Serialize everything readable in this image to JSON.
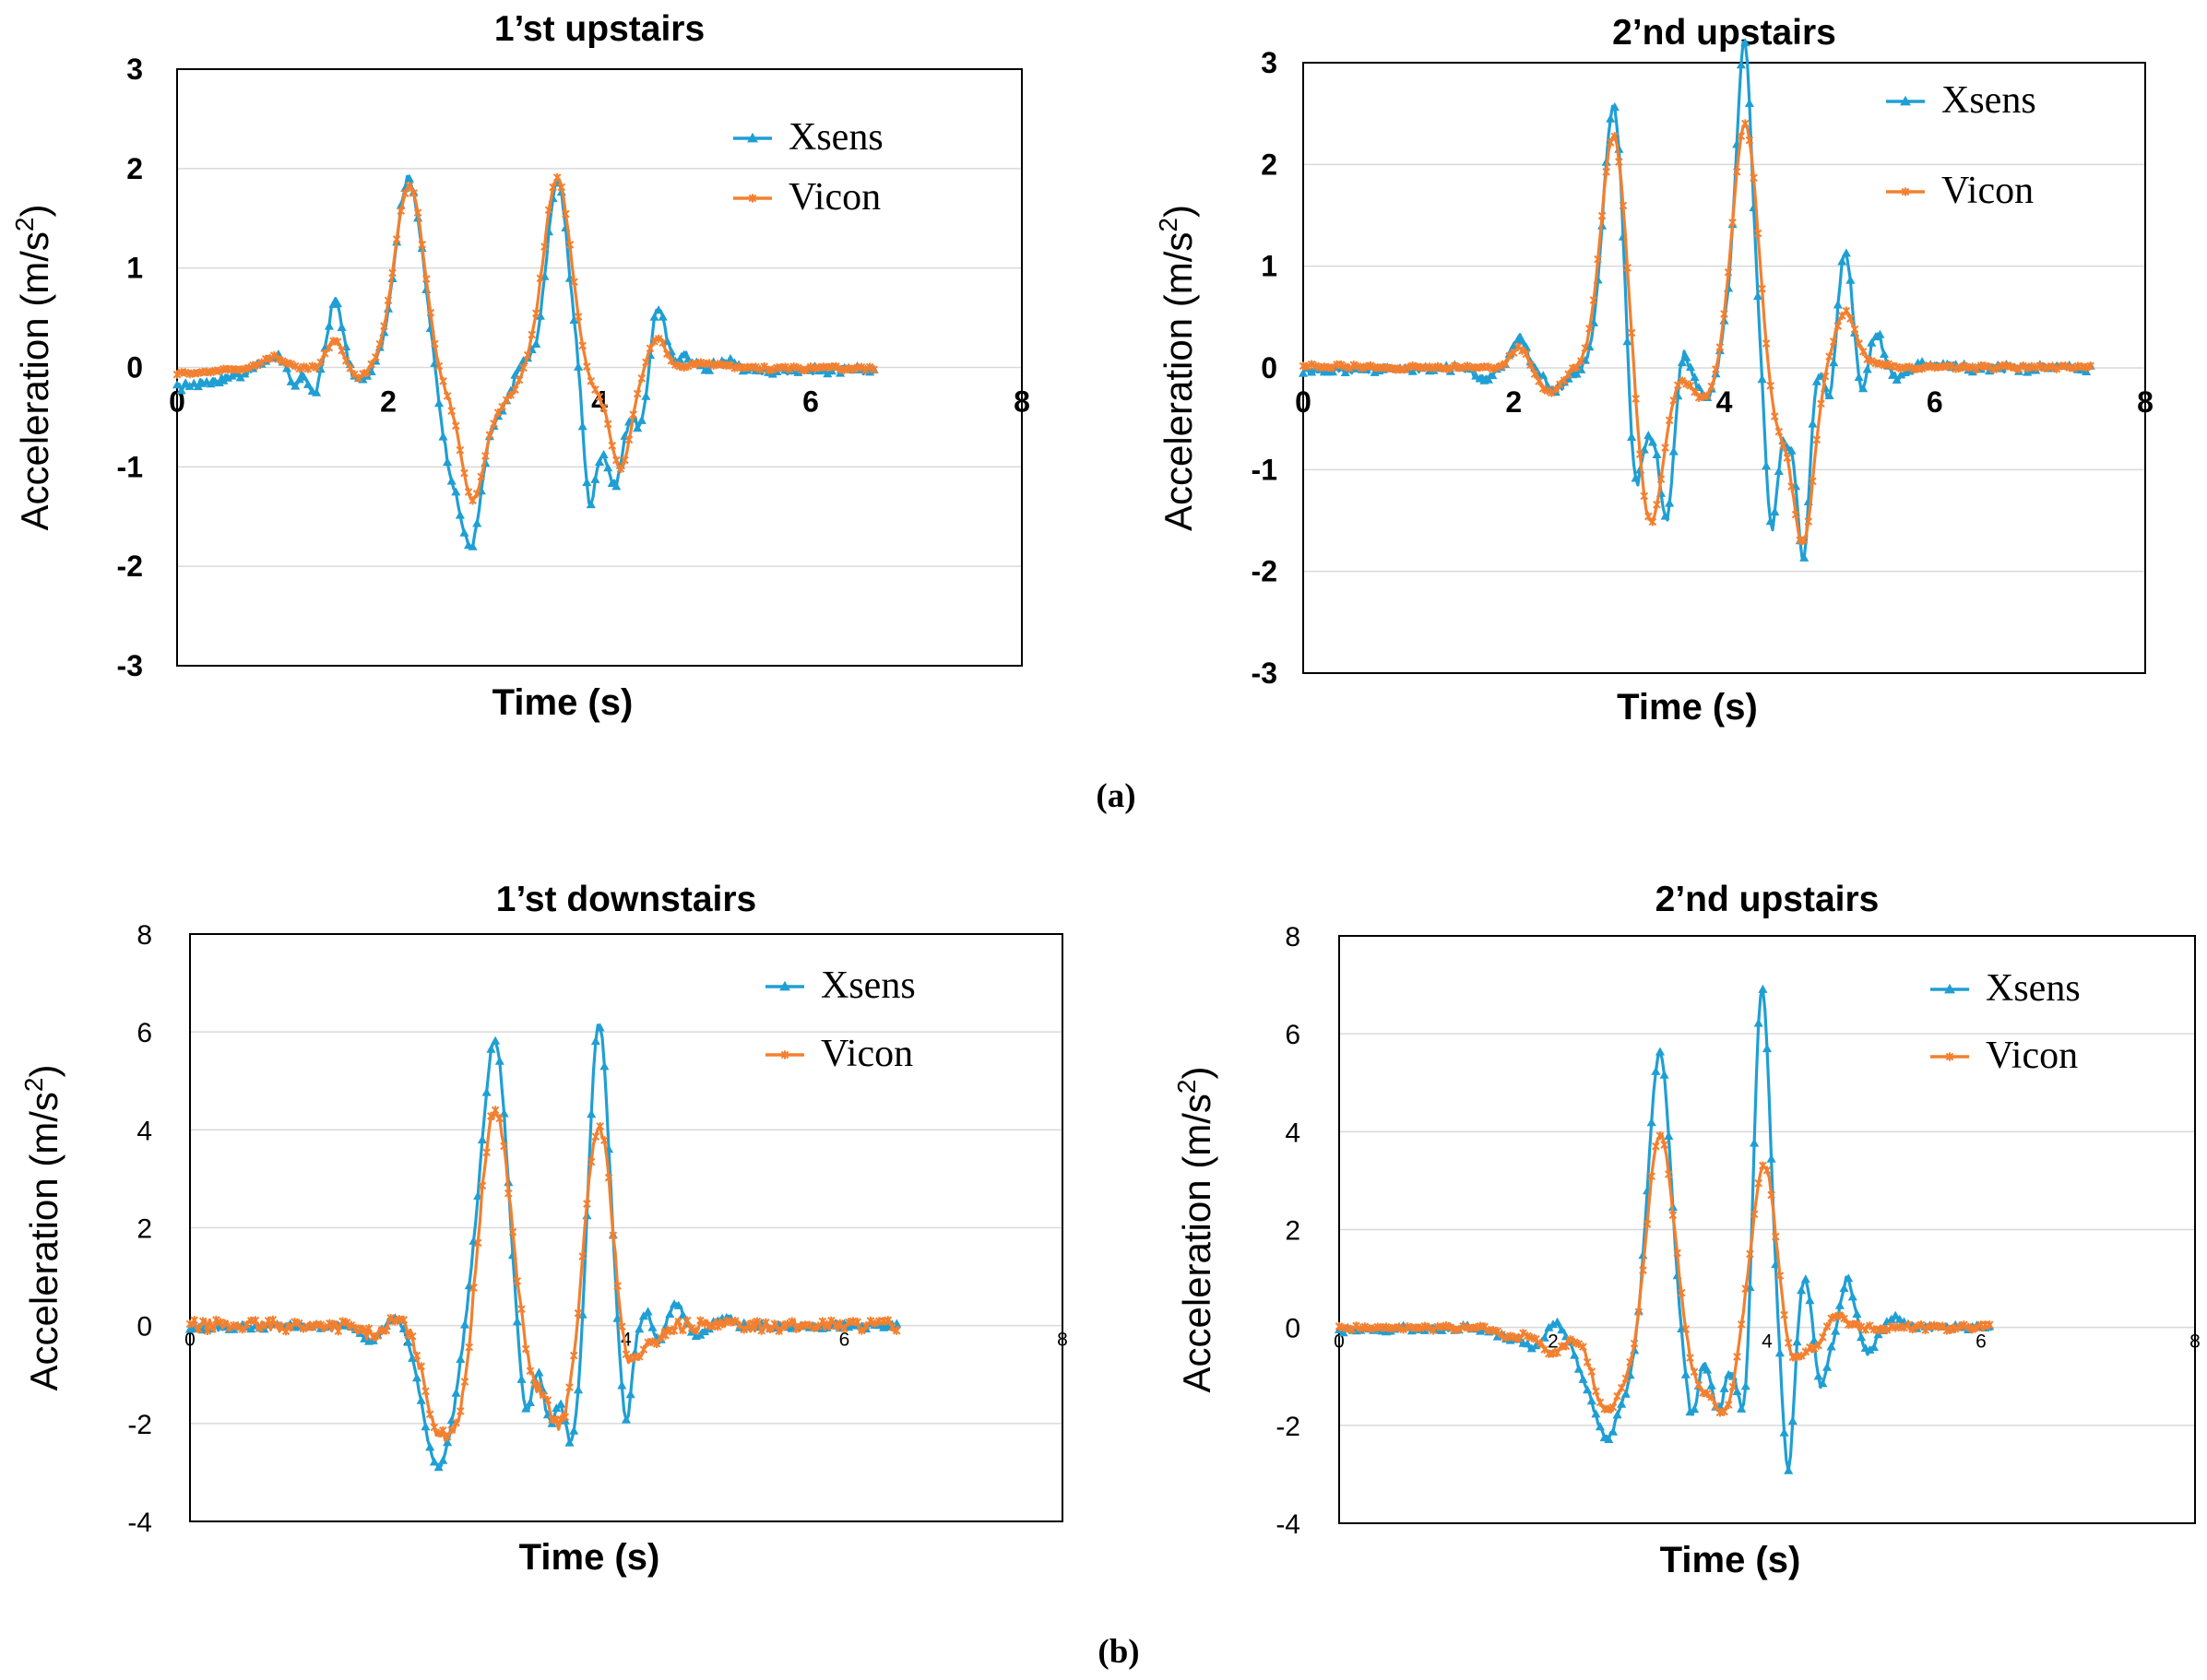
{
  "figure": {
    "sublabel_a": "(a)",
    "sublabel_b": "(b)"
  },
  "colors": {
    "xsens": "#1f9fd4",
    "vicon": "#f28030"
  },
  "chart_data": [
    {
      "type": "line",
      "title": "1’st upstairs",
      "xlabel": "Time (s)",
      "ylabel_main": "Acceleration (m/s",
      "ylabel_sup": "2",
      "ylabel_close": ")",
      "xlim": [
        0,
        8
      ],
      "ylim": [
        -3,
        3
      ],
      "x_ticks": [
        "0",
        "2",
        "4",
        "6",
        "8"
      ],
      "y_ticks": [
        "-3",
        "-2",
        "-1",
        "0",
        "1",
        "2",
        "3"
      ],
      "x_end": 6.6,
      "series": [
        {
          "name": "Xsens",
          "base": -0.18,
          "noise": 0.04,
          "peaks": [
            [
              0.95,
              0.15,
              0.12
            ],
            [
              1.1,
              -0.25,
              0.05
            ],
            [
              1.3,
              -0.25,
              0.05
            ],
            [
              1.5,
              0.7,
              0.07
            ],
            [
              1.7,
              -0.1,
              0.08
            ],
            [
              2.05,
              0.2,
              0.1
            ],
            [
              2.2,
              1.85,
              0.12
            ],
            [
              2.4,
              0.2,
              0.08
            ],
            [
              2.6,
              -0.9,
              0.12
            ],
            [
              2.8,
              -1.5,
              0.1
            ],
            [
              3.05,
              -0.4,
              0.1
            ],
            [
              3.3,
              0.1,
              0.08
            ],
            [
              3.6,
              1.9,
              0.1
            ],
            [
              3.8,
              0.1,
              0.06
            ],
            [
              3.9,
              -1.2,
              0.06
            ],
            [
              4.0,
              -0.4,
              0.07
            ],
            [
              4.15,
              -1.1,
              0.08
            ],
            [
              4.3,
              -0.15,
              0.06
            ],
            [
              4.4,
              -0.55,
              0.06
            ],
            [
              4.55,
              0.65,
              0.07
            ],
            [
              4.8,
              0.15,
              0.08
            ],
            [
              5.2,
              0.1,
              0.1
            ]
          ]
        },
        {
          "name": "Vicon",
          "base": -0.05,
          "noise": 0.02,
          "peaks": [
            [
              0.9,
              0.12,
              0.1
            ],
            [
              1.5,
              0.3,
              0.08
            ],
            [
              1.7,
              -0.1,
              0.1
            ],
            [
              2.2,
              1.85,
              0.14
            ],
            [
              2.5,
              -0.2,
              0.1
            ],
            [
              2.8,
              -1.3,
              0.12
            ],
            [
              3.1,
              -0.3,
              0.12
            ],
            [
              3.6,
              1.9,
              0.13
            ],
            [
              3.95,
              -0.2,
              0.1
            ],
            [
              4.2,
              -1.0,
              0.1
            ],
            [
              4.55,
              0.3,
              0.08
            ],
            [
              5.0,
              0.05,
              0.15
            ]
          ]
        }
      ]
    },
    {
      "type": "line",
      "title": "2’nd upstairs",
      "xlabel": "Time (s)",
      "ylabel_main": "Acceleration (m/s",
      "ylabel_sup": "2",
      "ylabel_close": ")",
      "xlim": [
        0,
        8
      ],
      "ylim": [
        -3,
        3
      ],
      "x_ticks": [
        "0",
        "2",
        "4",
        "6",
        "8"
      ],
      "y_ticks": [
        "-3",
        "-2",
        "-1",
        "0",
        "1",
        "2",
        "3"
      ],
      "x_end": 7.5,
      "series": [
        {
          "name": "Xsens",
          "base": -0.02,
          "noise": 0.04,
          "peaks": [
            [
              1.7,
              -0.1,
              0.08
            ],
            [
              2.05,
              0.3,
              0.07
            ],
            [
              2.4,
              -0.2,
              0.1
            ],
            [
              2.95,
              2.6,
              0.1
            ],
            [
              3.15,
              -1.4,
              0.07
            ],
            [
              3.3,
              -0.4,
              0.05
            ],
            [
              3.45,
              -1.5,
              0.07
            ],
            [
              3.6,
              0.25,
              0.05
            ],
            [
              3.85,
              -0.3,
              0.1
            ],
            [
              4.1,
              0.8,
              0.1
            ],
            [
              4.2,
              2.7,
              0.07
            ],
            [
              4.35,
              0.2,
              0.05
            ],
            [
              4.45,
              -1.6,
              0.06
            ],
            [
              4.6,
              -0.6,
              0.05
            ],
            [
              4.75,
              -1.9,
              0.06
            ],
            [
              4.9,
              0.1,
              0.05
            ],
            [
              5.0,
              -0.4,
              0.05
            ],
            [
              5.15,
              1.15,
              0.07
            ],
            [
              5.3,
              -0.3,
              0.05
            ],
            [
              5.45,
              0.35,
              0.06
            ],
            [
              5.65,
              -0.1,
              0.07
            ],
            [
              6.0,
              0.05,
              0.15
            ]
          ]
        },
        {
          "name": "Vicon",
          "base": 0.02,
          "noise": 0.02,
          "peaks": [
            [
              2.05,
              0.2,
              0.08
            ],
            [
              2.35,
              -0.25,
              0.1
            ],
            [
              2.95,
              2.3,
              0.12
            ],
            [
              3.3,
              -1.55,
              0.12
            ],
            [
              3.8,
              -0.3,
              0.12
            ],
            [
              4.2,
              2.4,
              0.12
            ],
            [
              4.5,
              -0.6,
              0.1
            ],
            [
              4.75,
              -1.7,
              0.1
            ],
            [
              5.15,
              0.55,
              0.1
            ],
            [
              5.45,
              0.05,
              0.12
            ]
          ]
        }
      ]
    },
    {
      "type": "line",
      "title": "1’st downstairs",
      "xlabel": "Time (s)",
      "ylabel_main": "Acceleration (m/s",
      "ylabel_sup": "2",
      "ylabel_close": ")",
      "xlim": [
        0,
        8
      ],
      "ylim": [
        -4,
        8
      ],
      "x_ticks": [
        "0",
        "2",
        "4",
        "6",
        "8"
      ],
      "y_ticks": [
        "-4",
        "-2",
        "0",
        "2",
        "4",
        "6",
        "8"
      ],
      "x_end": 6.5,
      "series": [
        {
          "name": "Xsens",
          "base": -0.05,
          "noise": 0.06,
          "peaks": [
            [
              1.7,
              -0.3,
              0.12
            ],
            [
              1.85,
              0.3,
              0.08
            ],
            [
              2.15,
              -0.8,
              0.1
            ],
            [
              2.3,
              -2.5,
              0.12
            ],
            [
              2.5,
              -0.5,
              0.1
            ],
            [
              2.6,
              1.0,
              0.1
            ],
            [
              2.8,
              5.7,
              0.11
            ],
            [
              2.97,
              -0.3,
              0.06
            ],
            [
              3.08,
              -1.8,
              0.06
            ],
            [
              3.2,
              -0.3,
              0.06
            ],
            [
              3.3,
              -1.8,
              0.06
            ],
            [
              3.4,
              -0.6,
              0.05
            ],
            [
              3.5,
              -2.3,
              0.06
            ],
            [
              3.6,
              -0.8,
              0.05
            ],
            [
              3.75,
              6.2,
              0.09
            ],
            [
              3.92,
              -0.3,
              0.05
            ],
            [
              4.0,
              -2.0,
              0.05
            ],
            [
              4.2,
              0.3,
              0.05
            ],
            [
              4.3,
              -0.4,
              0.05
            ],
            [
              4.45,
              0.5,
              0.06
            ],
            [
              4.65,
              -0.2,
              0.06
            ],
            [
              4.9,
              0.2,
              0.06
            ]
          ]
        },
        {
          "name": "Vicon",
          "base": 0.0,
          "noise": 0.12,
          "peaks": [
            [
              1.7,
              -0.2,
              0.12
            ],
            [
              1.9,
              0.2,
              0.1
            ],
            [
              2.3,
              -2.2,
              0.14
            ],
            [
              2.5,
              -1.0,
              0.08
            ],
            [
              2.8,
              4.4,
              0.13
            ],
            [
              3.15,
              -1.0,
              0.1
            ],
            [
              3.4,
              -2.0,
              0.12
            ],
            [
              3.75,
              4.1,
              0.12
            ],
            [
              4.0,
              -1.0,
              0.08
            ],
            [
              4.2,
              -0.4,
              0.1
            ]
          ]
        }
      ]
    },
    {
      "type": "line",
      "title": "2’nd upstairs",
      "xlabel": "Time (s)",
      "ylabel_main": "Acceleration (m/s",
      "ylabel_sup": "2",
      "ylabel_close": ")",
      "xlim": [
        0,
        8
      ],
      "ylim": [
        -4,
        8
      ],
      "x_ticks": [
        "0",
        "2",
        "4",
        "6",
        "8"
      ],
      "y_ticks": [
        "-4",
        "-2",
        "0",
        "2",
        "4",
        "6",
        "8"
      ],
      "x_end": 6.1,
      "series": [
        {
          "name": "Xsens",
          "base": -0.05,
          "noise": 0.06,
          "peaks": [
            [
              1.6,
              -0.2,
              0.12
            ],
            [
              1.85,
              -0.4,
              0.1
            ],
            [
              2.0,
              0.2,
              0.08
            ],
            [
              2.3,
              -0.9,
              0.1
            ],
            [
              2.5,
              -2.0,
              0.1
            ],
            [
              2.7,
              -1.0,
              0.1
            ],
            [
              2.85,
              0.3,
              0.08
            ],
            [
              3.0,
              5.6,
              0.1
            ],
            [
              3.17,
              -0.4,
              0.06
            ],
            [
              3.3,
              -1.8,
              0.06
            ],
            [
              3.45,
              -0.4,
              0.05
            ],
            [
              3.55,
              -1.6,
              0.06
            ],
            [
              3.68,
              -0.5,
              0.05
            ],
            [
              3.8,
              -2.4,
              0.06
            ],
            [
              3.95,
              7.0,
              0.08
            ],
            [
              4.1,
              -0.5,
              0.05
            ],
            [
              4.2,
              -2.9,
              0.05
            ],
            [
              4.35,
              1.0,
              0.06
            ],
            [
              4.5,
              -1.2,
              0.05
            ],
            [
              4.6,
              -0.3,
              0.05
            ],
            [
              4.75,
              1.0,
              0.06
            ],
            [
              4.95,
              -0.5,
              0.06
            ],
            [
              5.2,
              0.2,
              0.07
            ]
          ]
        },
        {
          "name": "Vicon",
          "base": -0.02,
          "noise": 0.06,
          "peaks": [
            [
              1.6,
              -0.2,
              0.12
            ],
            [
              2.0,
              -0.5,
              0.12
            ],
            [
              2.5,
              -1.7,
              0.13
            ],
            [
              2.75,
              -0.6,
              0.1
            ],
            [
              3.0,
              4.0,
              0.12
            ],
            [
              3.35,
              -1.0,
              0.1
            ],
            [
              3.6,
              -1.7,
              0.12
            ],
            [
              3.9,
              -1.0,
              0.08
            ],
            [
              3.95,
              4.1,
              0.11
            ],
            [
              4.25,
              -0.7,
              0.08
            ],
            [
              4.45,
              -0.4,
              0.08
            ],
            [
              4.65,
              0.3,
              0.08
            ]
          ]
        }
      ]
    }
  ]
}
